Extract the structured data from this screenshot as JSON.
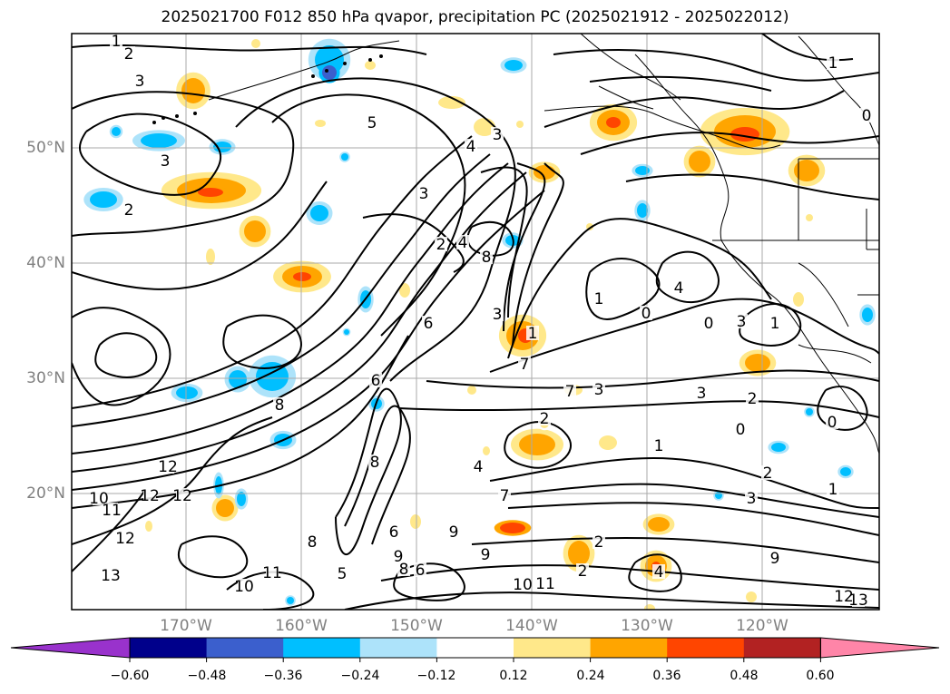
{
  "title": "2025021700 F012 850 hPa qvapor, precipitation PC (2025021912 - 2025022012)",
  "lat_labels": [
    "50°N",
    "40°N",
    "30°N",
    "20°N"
  ],
  "lon_labels": [
    "170°W",
    "160°W",
    "150°W",
    "140°W",
    "130°W",
    "120°W"
  ],
  "colorbar": {
    "labels": [
      "−0.60",
      "−0.48",
      "−0.36",
      "−0.24",
      "−0.12",
      "0.12",
      "0.24",
      "0.36",
      "0.48",
      "0.60"
    ],
    "colors": [
      "#9932CC",
      "#00008B",
      "#3B5FCD",
      "#00BFFF",
      "#ADE3FA",
      "#FFFFFF",
      "#FFE88A",
      "#FFA500",
      "#FF4500",
      "#B22222",
      "#FF85A8"
    ]
  },
  "contour_labels": [
    "1",
    "2",
    "3",
    "3",
    "5",
    "4",
    "3",
    "2",
    "3",
    "4",
    "2",
    "1",
    "0",
    "0",
    "3",
    "1",
    "4",
    "1",
    "3",
    "6",
    "8",
    "8",
    "7",
    "2",
    "7",
    "3",
    "3",
    "2",
    "0",
    "0",
    "1",
    "2",
    "3",
    "1",
    "9",
    "12",
    "11",
    "10",
    "12",
    "13",
    "6",
    "9",
    "9",
    "10",
    "11",
    "12",
    "13",
    "12",
    "12",
    "10",
    "11",
    "8",
    "8",
    "6",
    "5",
    "9",
    "8",
    "6",
    "4",
    "7",
    "4",
    "2",
    "2",
    "1",
    "0"
  ]
}
